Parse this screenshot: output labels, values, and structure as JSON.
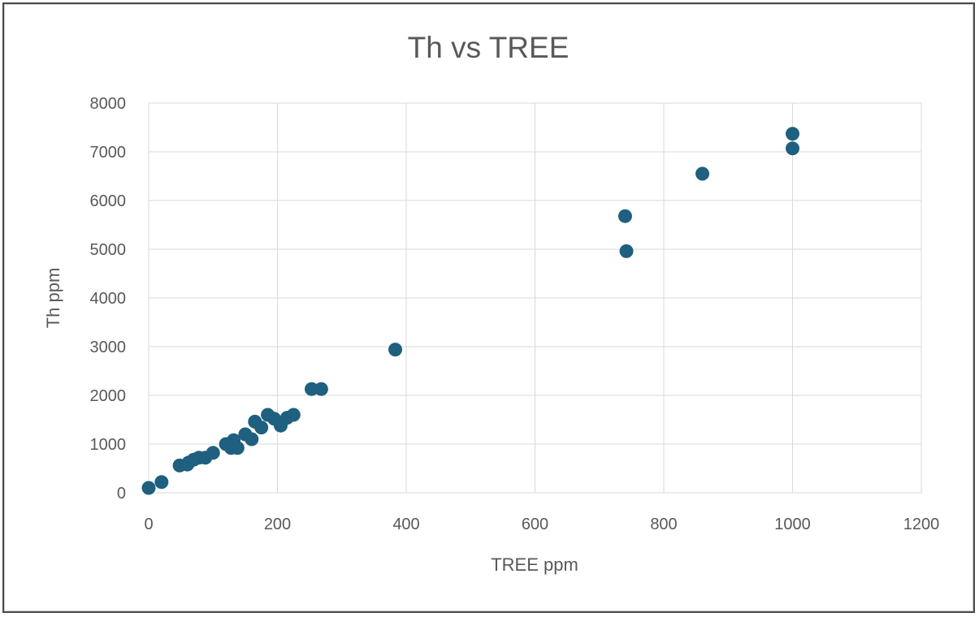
{
  "chart_data": {
    "type": "scatter",
    "title": "Th vs TREE",
    "xlabel": "TREE ppm",
    "ylabel": "Th ppm",
    "xlim": [
      0,
      1200
    ],
    "ylim": [
      0,
      8000
    ],
    "x_ticks": [
      0,
      200,
      400,
      600,
      800,
      1000,
      1200
    ],
    "y_ticks": [
      0,
      1000,
      2000,
      3000,
      4000,
      5000,
      6000,
      7000,
      8000
    ],
    "grid": true,
    "legend": "none",
    "marker_color": "#1f5f7f",
    "series": [
      {
        "points": [
          [
            0,
            100
          ],
          [
            20,
            220
          ],
          [
            48,
            560
          ],
          [
            60,
            580
          ],
          [
            62,
            620
          ],
          [
            70,
            680
          ],
          [
            78,
            720
          ],
          [
            88,
            720
          ],
          [
            100,
            820
          ],
          [
            120,
            1000
          ],
          [
            128,
            920
          ],
          [
            132,
            1080
          ],
          [
            138,
            920
          ],
          [
            150,
            1200
          ],
          [
            160,
            1100
          ],
          [
            165,
            1460
          ],
          [
            175,
            1340
          ],
          [
            185,
            1600
          ],
          [
            195,
            1520
          ],
          [
            205,
            1380
          ],
          [
            215,
            1540
          ],
          [
            225,
            1600
          ],
          [
            253,
            2130
          ],
          [
            268,
            2130
          ],
          [
            383,
            2940
          ],
          [
            740,
            5680
          ],
          [
            742,
            4960
          ],
          [
            860,
            6550
          ],
          [
            1000,
            7370
          ],
          [
            1000,
            7070
          ]
        ]
      }
    ]
  }
}
